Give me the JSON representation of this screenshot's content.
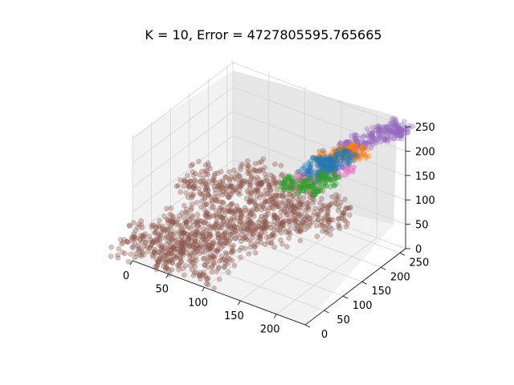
{
  "chart_data": {
    "type": "scatter",
    "projection": "3d",
    "title": "K = 10, Error = 4727805595.765665",
    "xlabel": "",
    "ylabel": "",
    "zlabel": "",
    "x_ticks": [
      "0",
      "50",
      "100",
      "150",
      "200"
    ],
    "y_ticks": [
      "0",
      "50",
      "100",
      "150",
      "200",
      "250"
    ],
    "z_ticks": [
      "0",
      "50",
      "100",
      "150",
      "200",
      "250"
    ],
    "xlim": [
      0,
      240
    ],
    "ylim": [
      0,
      265
    ],
    "zlim": [
      0,
      255
    ],
    "grid": true,
    "legend": "none",
    "series": [
      {
        "color": "#8c564b",
        "values": [
          [
            20,
            20,
            30
          ],
          [
            60,
            40,
            70
          ],
          [
            110,
            60,
            90
          ],
          [
            150,
            80,
            120
          ],
          [
            190,
            110,
            140
          ],
          [
            60,
            100,
            120
          ],
          [
            120,
            120,
            150
          ],
          [
            80,
            20,
            40
          ]
        ]
      },
      {
        "color": "#9467bd",
        "values": [
          [
            200,
            225,
            220
          ],
          [
            215,
            240,
            235
          ],
          [
            230,
            250,
            245
          ],
          [
            190,
            215,
            205
          ],
          [
            235,
            255,
            250
          ]
        ]
      },
      {
        "color": "#1f77b4",
        "values": [
          [
            165,
            165,
            175
          ],
          [
            180,
            180,
            185
          ],
          [
            170,
            185,
            190
          ],
          [
            190,
            195,
            200
          ]
        ]
      },
      {
        "color": "#ff7f0e",
        "values": [
          [
            175,
            185,
            195
          ],
          [
            190,
            200,
            205
          ],
          [
            200,
            210,
            210
          ]
        ]
      },
      {
        "color": "#e377c2",
        "values": [
          [
            165,
            150,
            170
          ],
          [
            180,
            170,
            180
          ],
          [
            195,
            180,
            190
          ]
        ]
      },
      {
        "color": "#2ca02c",
        "values": [
          [
            150,
            140,
            155
          ],
          [
            170,
            150,
            160
          ],
          [
            185,
            160,
            175
          ]
        ]
      }
    ]
  }
}
